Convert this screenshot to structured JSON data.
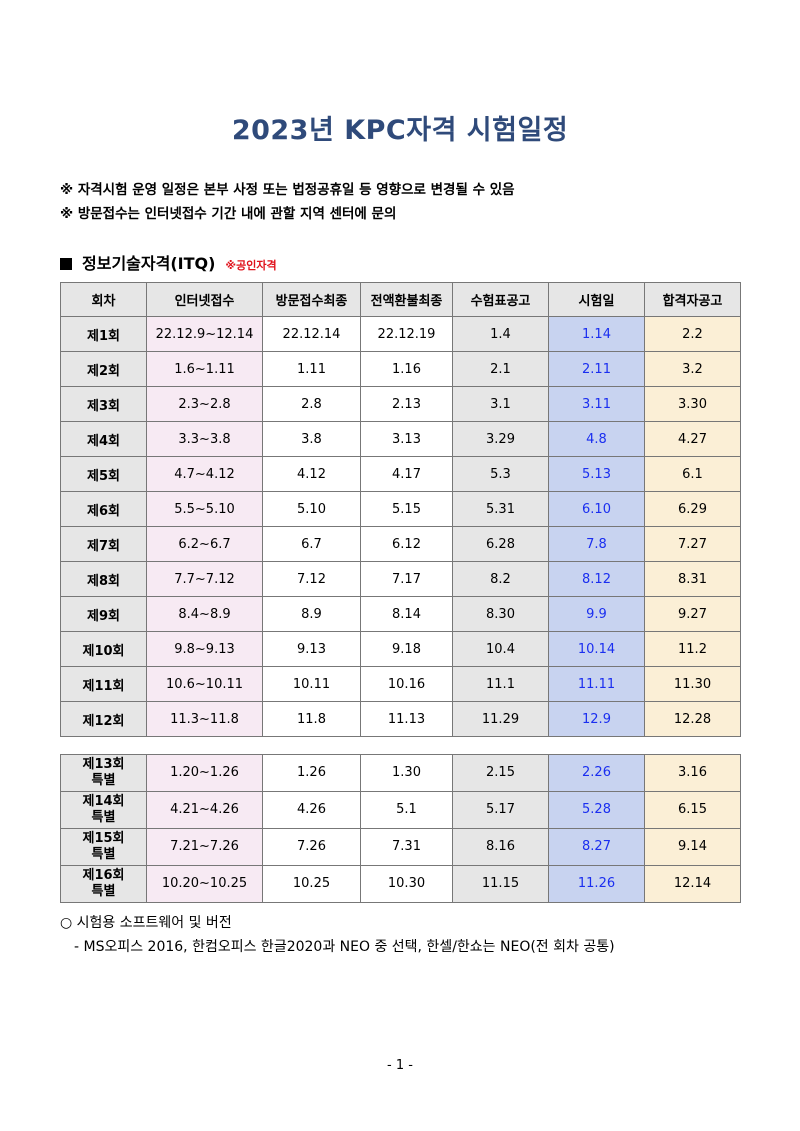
{
  "title": "2023년 KPC자격 시험일정",
  "notes": [
    "※ 자격시험 운영 일정은 본부 사정 또는 법정공휴일 등 영향으로 변경될 수 있음",
    "※ 방문접수는 인터넷접수 기간 내에 관할 지역 센터에 문의"
  ],
  "section": {
    "title": "정보기술자격(ITQ)",
    "tag": "※공인자격"
  },
  "table": {
    "headers": [
      "회차",
      "인터넷접수",
      "방문접수최종",
      "전액환불최종",
      "수험표공고",
      "시험일",
      "합격자공고"
    ],
    "rows": [
      [
        "제1회",
        "22.12.9~12.14",
        "22.12.14",
        "22.12.19",
        "1.4",
        "1.14",
        "2.2"
      ],
      [
        "제2회",
        "1.6~1.11",
        "1.11",
        "1.16",
        "2.1",
        "2.11",
        "3.2"
      ],
      [
        "제3회",
        "2.3~2.8",
        "2.8",
        "2.13",
        "3.1",
        "3.11",
        "3.30"
      ],
      [
        "제4회",
        "3.3~3.8",
        "3.8",
        "3.13",
        "3.29",
        "4.8",
        "4.27"
      ],
      [
        "제5회",
        "4.7~4.12",
        "4.12",
        "4.17",
        "5.3",
        "5.13",
        "6.1"
      ],
      [
        "제6회",
        "5.5~5.10",
        "5.10",
        "5.15",
        "5.31",
        "6.10",
        "6.29"
      ],
      [
        "제7회",
        "6.2~6.7",
        "6.7",
        "6.12",
        "6.28",
        "7.8",
        "7.27"
      ],
      [
        "제8회",
        "7.7~7.12",
        "7.12",
        "7.17",
        "8.2",
        "8.12",
        "8.31"
      ],
      [
        "제9회",
        "8.4~8.9",
        "8.9",
        "8.14",
        "8.30",
        "9.9",
        "9.27"
      ],
      [
        "제10회",
        "9.8~9.13",
        "9.13",
        "9.18",
        "10.4",
        "10.14",
        "11.2"
      ],
      [
        "제11회",
        "10.6~10.11",
        "10.11",
        "10.16",
        "11.1",
        "11.11",
        "11.30"
      ],
      [
        "제12회",
        "11.3~11.8",
        "11.8",
        "11.13",
        "11.29",
        "12.9",
        "12.28"
      ]
    ],
    "special_rows": [
      [
        [
          "제13회",
          "특별"
        ],
        "1.20~1.26",
        "1.26",
        "1.30",
        "2.15",
        "2.26",
        "3.16"
      ],
      [
        [
          "제14회",
          "특별"
        ],
        "4.21~4.26",
        "4.26",
        "5.1",
        "5.17",
        "5.28",
        "6.15"
      ],
      [
        [
          "제15회",
          "특별"
        ],
        "7.21~7.26",
        "7.26",
        "7.31",
        "8.16",
        "8.27",
        "9.14"
      ],
      [
        [
          "제16회",
          "특별"
        ],
        "10.20~10.25",
        "10.25",
        "10.30",
        "11.15",
        "11.26",
        "12.14"
      ]
    ]
  },
  "footer": {
    "heading": "○ 시험용 소프트웨어 및 버전",
    "detail": "- MS오피스 2016, 한컴오피스 한글2020과 NEO 중 선택, 한셀/한쇼는 NEO(전 회차 공통)"
  },
  "page_number": "- 1 -",
  "colors": {
    "title": "#2f4a7a",
    "tag": "#e0101a",
    "exam_text": "#1a2ef0",
    "online_bg": "#f7eaf3",
    "exam_bg": "#c8d3f0",
    "result_bg": "#fbefd6",
    "gray_bg": "#e6e6e6"
  }
}
